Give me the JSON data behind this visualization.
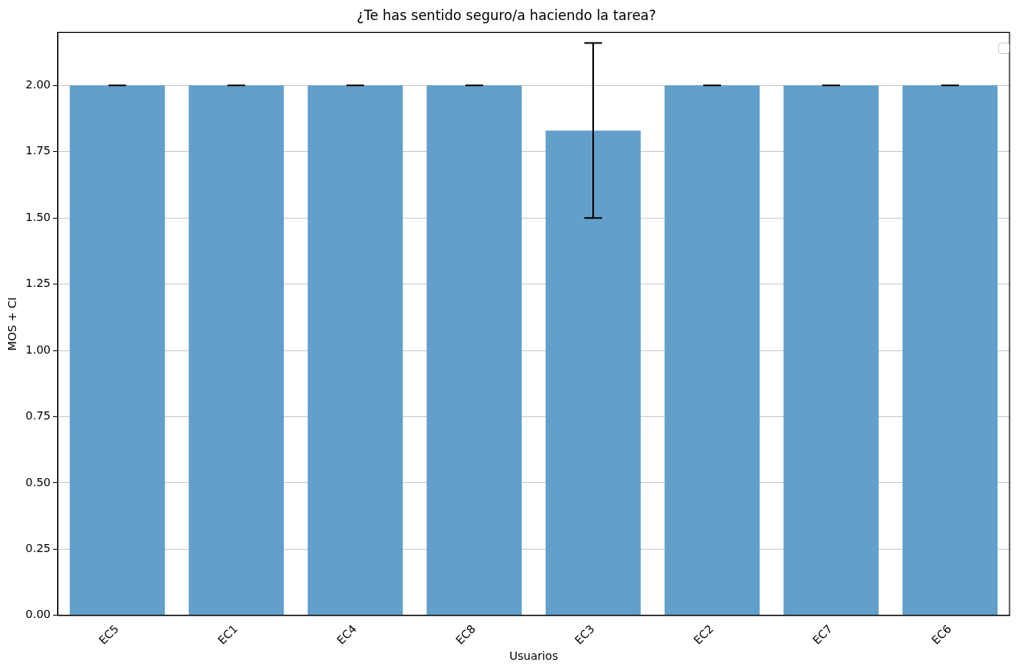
{
  "chart_data": {
    "type": "bar",
    "title": "¿Te has sentido seguro/a haciendo la tarea?",
    "xlabel": "Usuarios",
    "ylabel": "MOS + CI",
    "categories": [
      "EC5",
      "EC1",
      "EC4",
      "EC8",
      "EC3",
      "EC2",
      "EC7",
      "EC6"
    ],
    "values": [
      2,
      2,
      2,
      2,
      1.83,
      2,
      2,
      2
    ],
    "errors": [
      0,
      0,
      0,
      0,
      0.33,
      0,
      0,
      0
    ],
    "color": "#62a0cb",
    "ylim": [
      0,
      2.2
    ],
    "yticks": [
      {
        "value": 0,
        "label": "0.00"
      },
      {
        "value": 0.25,
        "label": "0.25"
      },
      {
        "value": 0.5,
        "label": "0.50"
      },
      {
        "value": 0.75,
        "label": "0.75"
      },
      {
        "value": 1,
        "label": "1.00"
      },
      {
        "value": 1.25,
        "label": "1.25"
      },
      {
        "value": 1.5,
        "label": "1.50"
      },
      {
        "value": 1.75,
        "label": "1.75"
      },
      {
        "value": 2,
        "label": "2.00"
      }
    ],
    "grid": "y"
  }
}
